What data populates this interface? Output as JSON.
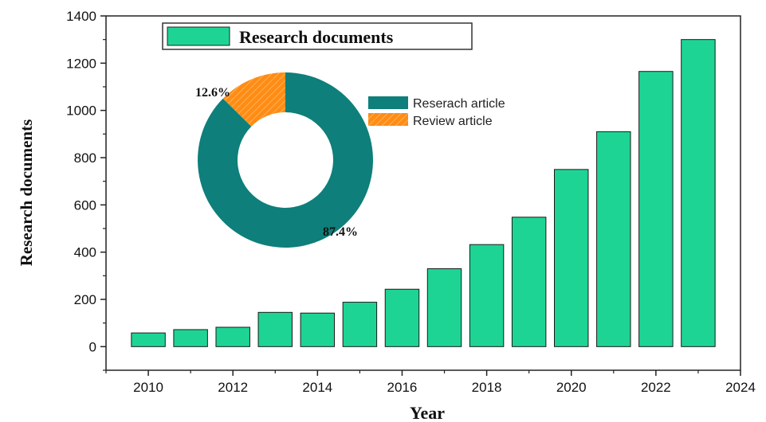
{
  "chart_data": [
    {
      "type": "bar",
      "x": [
        2010,
        2011,
        2012,
        2013,
        2014,
        2015,
        2016,
        2017,
        2018,
        2019,
        2020,
        2021,
        2022,
        2023
      ],
      "values": [
        58,
        72,
        82,
        145,
        142,
        188,
        243,
        330,
        432,
        548,
        750,
        910,
        1165,
        1300
      ],
      "series_name": "Research documents",
      "xlabel": "Year",
      "ylabel": "Research documents",
      "xlim": [
        2009,
        2024
      ],
      "ylim": [
        -100,
        1400
      ],
      "xticks": [
        "2010",
        "2012",
        "2014",
        "2016",
        "2018",
        "2020",
        "2022",
        "2024"
      ],
      "yticks": [
        "0",
        "200",
        "400",
        "600",
        "800",
        "1000",
        "1200",
        "1400"
      ],
      "bar_color": "#1ed495",
      "legend_position": "top-left"
    },
    {
      "type": "pie",
      "style": "donut",
      "labels": [
        "Reserach article",
        "Review article"
      ],
      "values": [
        87.4,
        12.6
      ],
      "value_labels": [
        "87.4%",
        "12.6%"
      ],
      "colors": [
        "#0e7f7a",
        "#ff8c14"
      ],
      "legend_position": "right"
    }
  ]
}
